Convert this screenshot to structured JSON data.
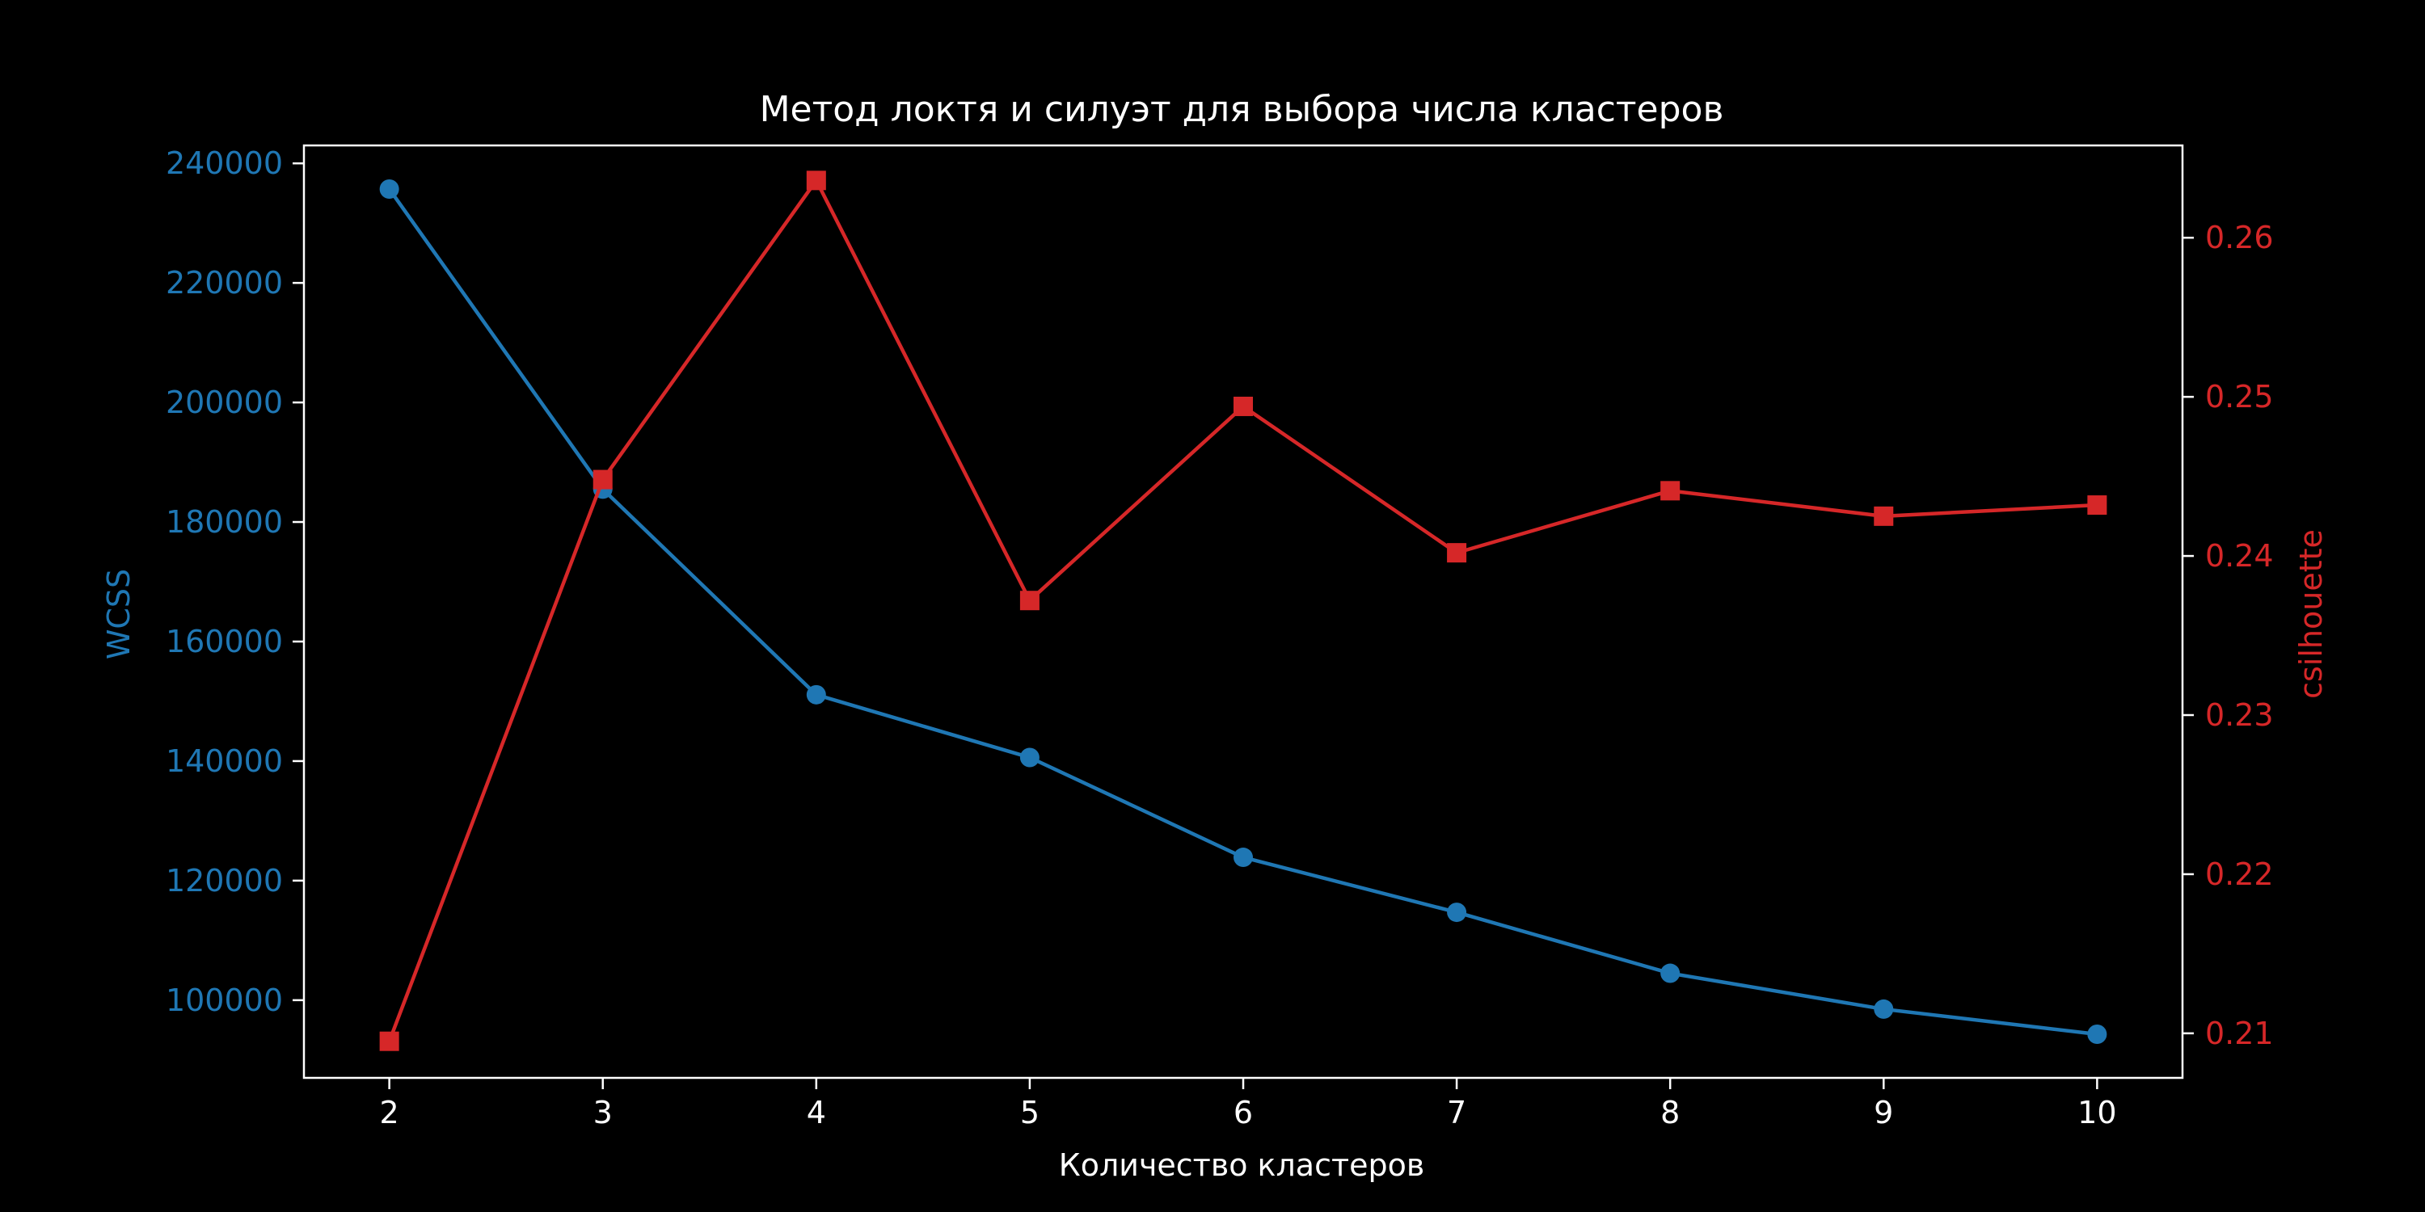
{
  "chart_data": {
    "type": "line",
    "title": "Метод локтя и силуэт для выбора числа кластеров",
    "xlabel": "Количество кластеров",
    "ylabel_left": "WCSS",
    "ylabel_right": "csilhouette",
    "x": [
      2,
      3,
      4,
      5,
      6,
      7,
      8,
      9,
      10
    ],
    "xlim": [
      1.6,
      10.4
    ],
    "x_ticks": [
      2,
      3,
      4,
      5,
      6,
      7,
      8,
      9,
      10
    ],
    "ylim_left": [
      87000,
      243000
    ],
    "y_ticks_left": [
      100000,
      120000,
      140000,
      160000,
      180000,
      200000,
      220000,
      240000
    ],
    "ylim_right": [
      0.2072,
      0.2658
    ],
    "y_ticks_right": [
      0.21,
      0.22,
      0.23,
      0.24,
      0.25,
      0.26
    ],
    "grid": false,
    "series": [
      {
        "axis": "left",
        "color": "#1f77b4",
        "marker": "circle",
        "values": [
          235700,
          185500,
          151100,
          140600,
          123900,
          114700,
          104500,
          98500,
          94300
        ]
      },
      {
        "axis": "right",
        "color": "#d62728",
        "marker": "square",
        "values": [
          0.2095,
          0.2448,
          0.2636,
          0.2372,
          0.2494,
          0.2402,
          0.2441,
          0.2425,
          0.2432
        ]
      }
    ],
    "colors": {
      "background": "#000000",
      "axes": "#ffffff",
      "text": "#ffffff",
      "left_axis": "#1f77b4",
      "right_axis": "#d62728"
    }
  }
}
